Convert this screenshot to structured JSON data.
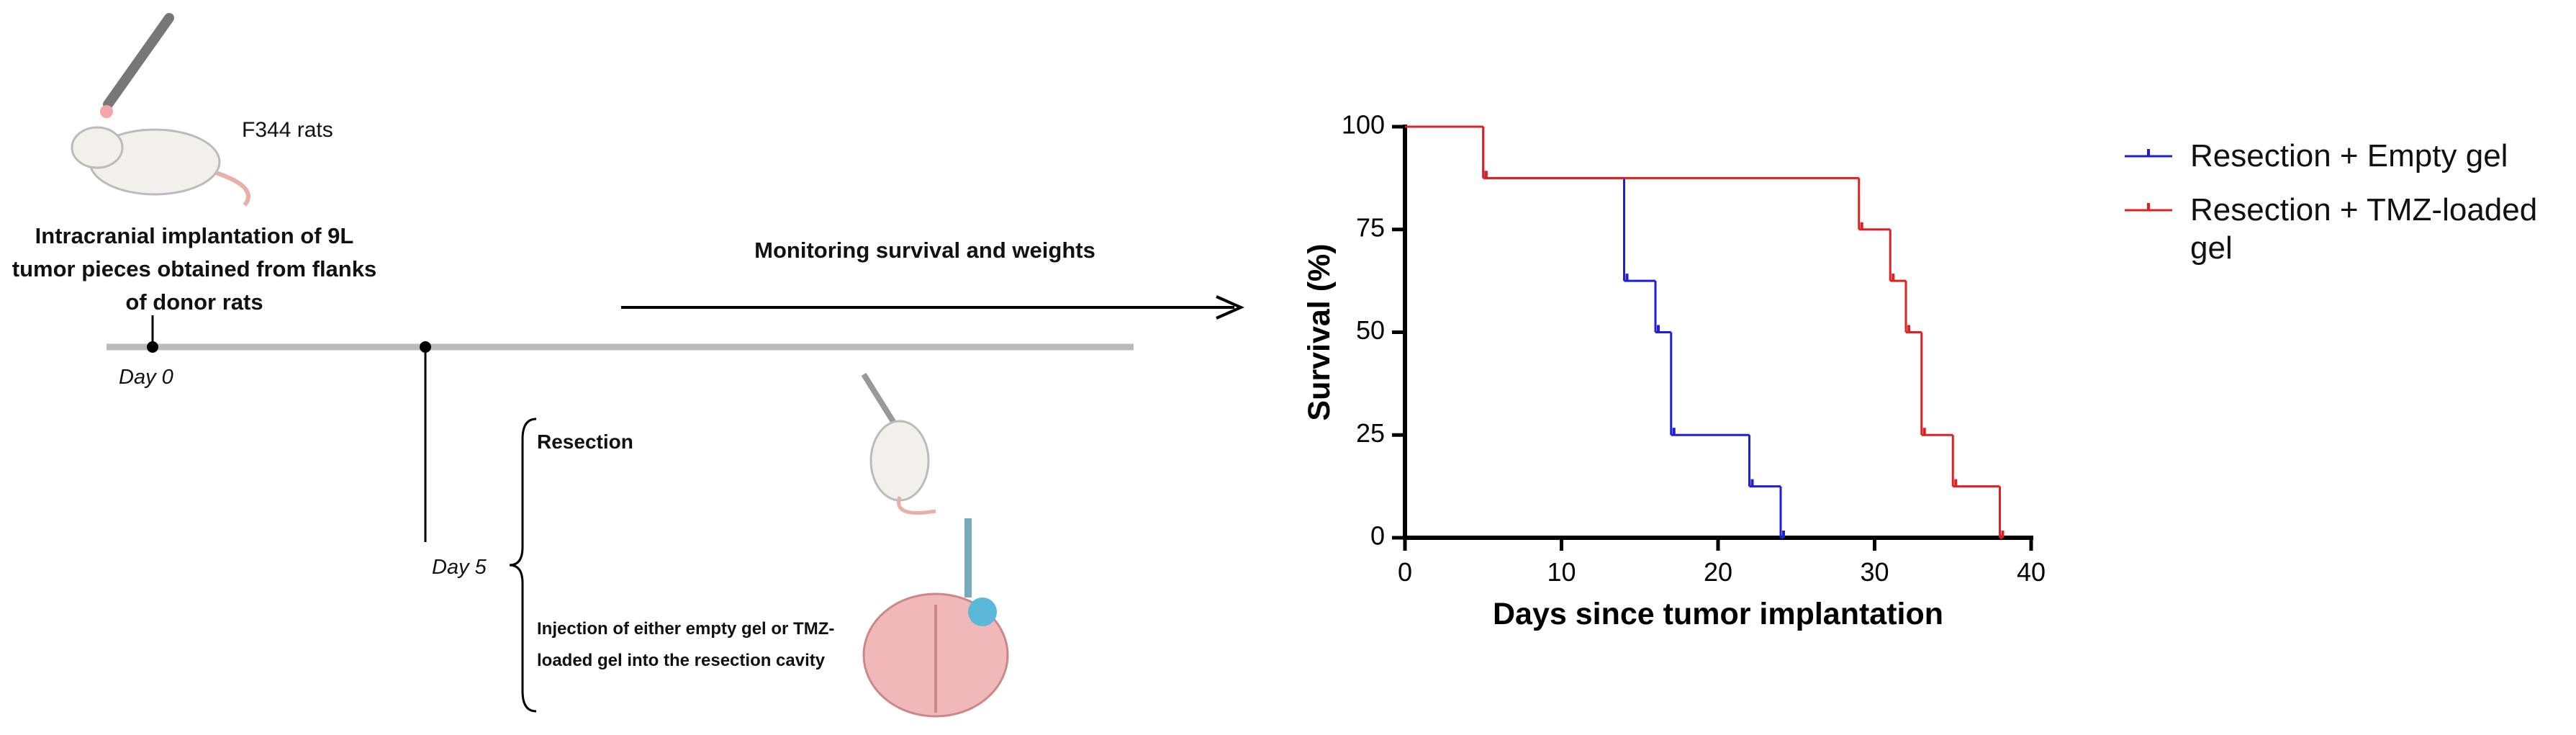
{
  "diagram": {
    "donor_label": "F344 rats",
    "implantation": "Intracranial implantation of 9L tumor pieces obtained from flanks of donor rats",
    "day0": "Day 0",
    "monitoring": "Monitoring survival and weights",
    "day5": "Day 5",
    "resection": "Resection",
    "injection": "Injection of either empty gel or TMZ-loaded gel into the resection cavity"
  },
  "chart_data": {
    "type": "step",
    "xlabel": "Days since tumor implantation",
    "ylabel": "Survival (%)",
    "xlim": [
      0,
      40
    ],
    "xticks": [
      0,
      10,
      20,
      30,
      40
    ],
    "ylim": [
      0,
      100
    ],
    "yticks": [
      0,
      25,
      50,
      75,
      100
    ],
    "series": [
      {
        "name": "Resection + Empty gel",
        "color": "#1f1fd6",
        "x": [
          0,
          5,
          14,
          16,
          17,
          22,
          24
        ],
        "values": [
          100,
          87.5,
          62.5,
          50,
          25,
          12.5,
          0
        ]
      },
      {
        "name": "Resection + TMZ-loaded gel",
        "color": "#e02020",
        "x": [
          0,
          5,
          29,
          31,
          32,
          33,
          35,
          38
        ],
        "values": [
          100,
          87.5,
          75,
          62.5,
          50,
          25,
          12.5,
          0
        ]
      }
    ]
  }
}
